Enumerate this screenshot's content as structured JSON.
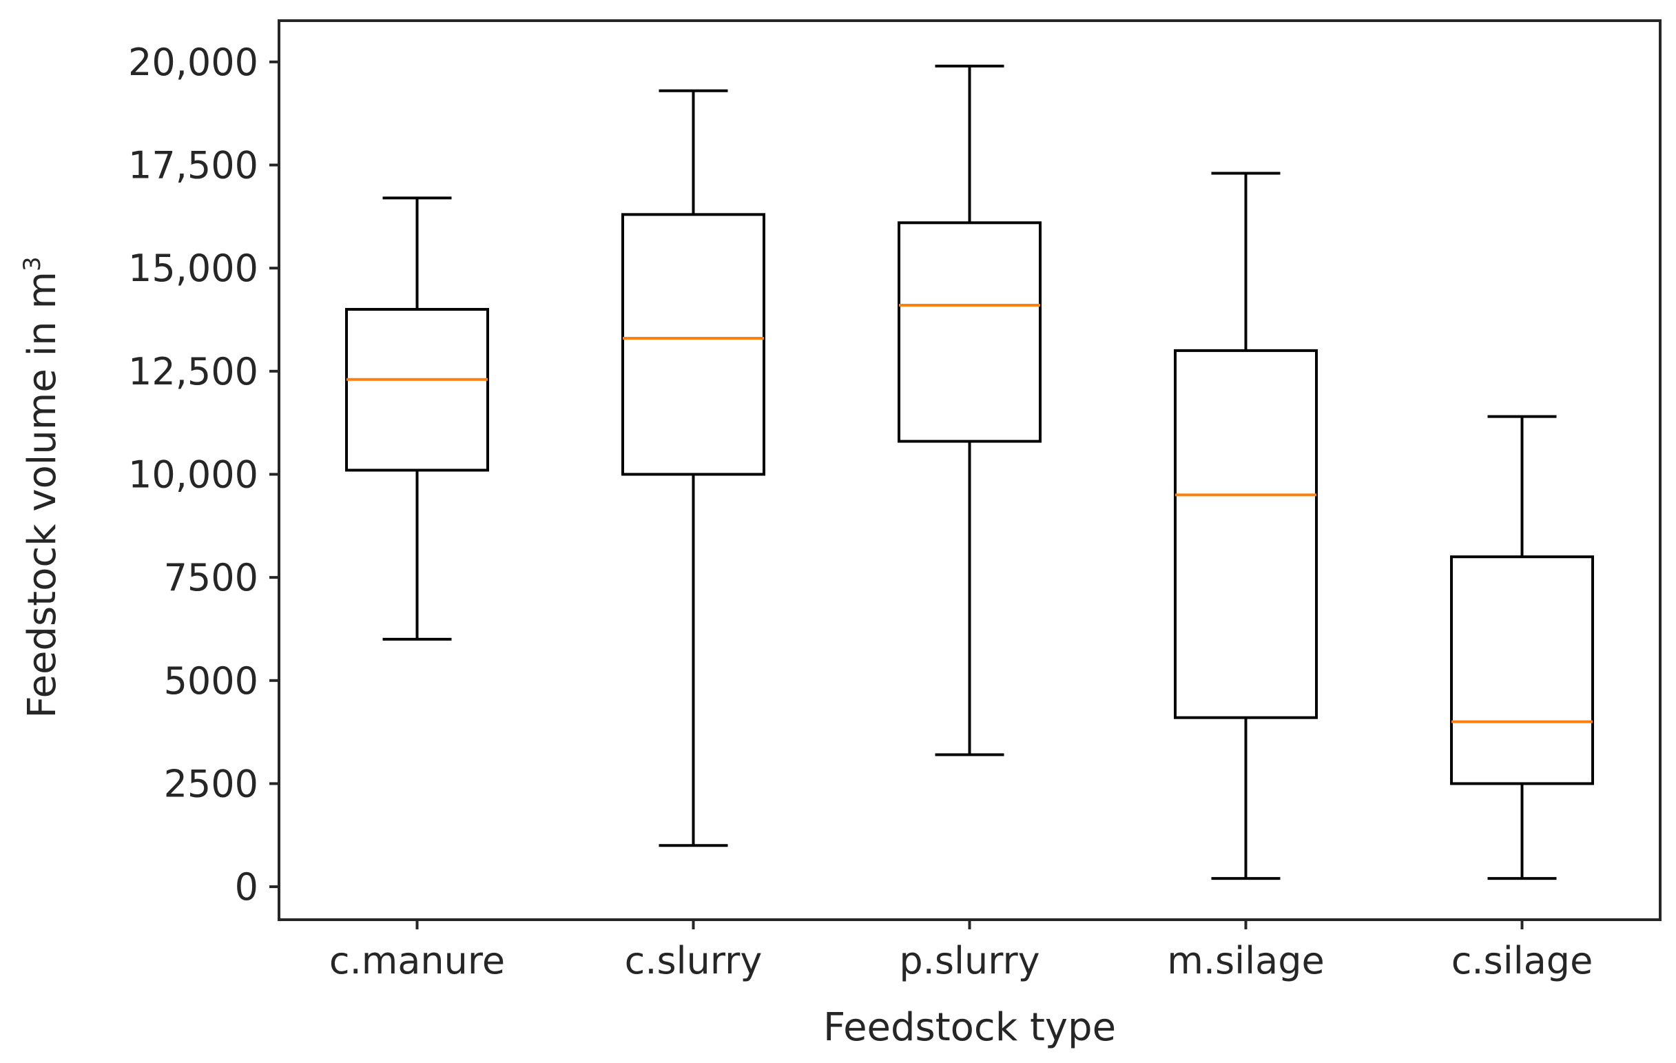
{
  "chart_data": {
    "type": "box",
    "title": "",
    "xlabel": "Feedstock type",
    "ylabel": "Feedstock volume in m",
    "ylabel_superscript": "3",
    "ylim": [
      -800,
      21000
    ],
    "yticks": [
      {
        "value": 0,
        "label": "0"
      },
      {
        "value": 2500,
        "label": "2500"
      },
      {
        "value": 5000,
        "label": "5000"
      },
      {
        "value": 7500,
        "label": "7500"
      },
      {
        "value": 10000,
        "label": "10,000"
      },
      {
        "value": 12500,
        "label": "12,500"
      },
      {
        "value": 15000,
        "label": "15,000"
      },
      {
        "value": 17500,
        "label": "17,500"
      },
      {
        "value": 20000,
        "label": "20,000"
      }
    ],
    "categories": [
      "c.manure",
      "c.slurry",
      "p.slurry",
      "m.silage",
      "c.silage"
    ],
    "boxes": [
      {
        "category": "c.manure",
        "whisker_low": 6000,
        "q1": 10100,
        "median": 12300,
        "q3": 14000,
        "whisker_high": 16700
      },
      {
        "category": "c.slurry",
        "whisker_low": 1000,
        "q1": 10000,
        "median": 13300,
        "q3": 16300,
        "whisker_high": 19300
      },
      {
        "category": "p.slurry",
        "whisker_low": 3200,
        "q1": 10800,
        "median": 14100,
        "q3": 16100,
        "whisker_high": 19900
      },
      {
        "category": "m.silage",
        "whisker_low": 200,
        "q1": 4100,
        "median": 9500,
        "q3": 13000,
        "whisker_high": 17300
      },
      {
        "category": "c.silage",
        "whisker_low": 200,
        "q1": 2500,
        "median": 4000,
        "q3": 8000,
        "whisker_high": 11400
      }
    ],
    "colors": {
      "box": "#000000",
      "median": "#ff7f0e",
      "axis": "#262626"
    }
  }
}
